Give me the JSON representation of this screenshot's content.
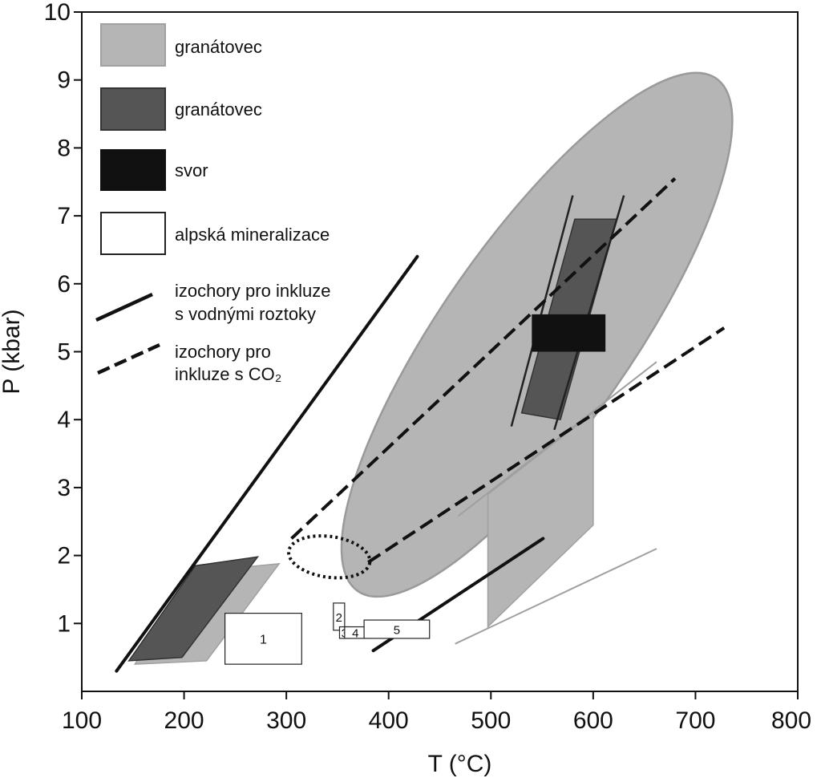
{
  "chart_data": {
    "type": "scatter",
    "xlabel": "T (°C)",
    "ylabel": "P (kbar)",
    "xlim": [
      100,
      800
    ],
    "ylim": [
      0,
      10
    ],
    "xticks": [
      100,
      200,
      300,
      400,
      500,
      600,
      700,
      800
    ],
    "yticks": [
      1,
      2,
      3,
      4,
      5,
      6,
      7,
      8,
      9,
      10
    ],
    "grid": false,
    "legend_position": "top-left",
    "legend": [
      {
        "label": "granátovec",
        "kind": "swatch",
        "color": "#b5b5b5",
        "stroke": "#a0a0a0"
      },
      {
        "label": "granátovec",
        "kind": "swatch",
        "color": "#555555",
        "stroke": "#333333"
      },
      {
        "label": "svor",
        "kind": "swatch",
        "color": "#111111",
        "stroke": "#111111"
      },
      {
        "label": "alpská mineralizace",
        "kind": "swatch",
        "color": "#ffffff",
        "stroke": "#222222"
      },
      {
        "label_lines": [
          "izochory pro inkluze",
          "s vodnými roztoky"
        ],
        "kind": "solid-line"
      },
      {
        "label_lines": [
          "izochory pro",
          "inkluze s CO₂"
        ],
        "kind": "dashed-line"
      }
    ],
    "fields": {
      "light_ellipse": {
        "center": [
          545,
          5.25
        ],
        "rx_units": 225,
        "ry_units": 4.9,
        "rotation_deg": 35,
        "color": "#b5b5b5"
      },
      "light_polygon_left": [
        [
          152,
          0.4
        ],
        [
          222,
          0.45
        ],
        [
          293,
          1.88
        ],
        [
          206,
          1.75
        ]
      ],
      "light_polygon_right": [
        [
          497,
          0.95
        ],
        [
          600,
          2.45
        ],
        [
          600,
          4.1
        ],
        [
          497,
          2.9
        ]
      ],
      "light_lines": [
        {
          "from": [
            465,
            0.7
          ],
          "to": [
            662,
            2.1
          ]
        },
        {
          "from": [
            468,
            2.58
          ],
          "to": [
            662,
            4.85
          ]
        }
      ],
      "dark_polygon_left": [
        [
          146,
          0.45
        ],
        [
          198,
          0.5
        ],
        [
          272,
          1.98
        ],
        [
          211,
          1.85
        ]
      ],
      "dark_polygon_right": [
        [
          530,
          4.1
        ],
        [
          568,
          4.0
        ],
        [
          623,
          6.95
        ],
        [
          582,
          6.95
        ]
      ],
      "dark_bracket_lines": [
        {
          "from": [
            520,
            3.9
          ],
          "to": [
            580,
            7.3
          ]
        },
        {
          "from": [
            562,
            3.85
          ],
          "to": [
            630,
            7.3
          ]
        }
      ],
      "black_rect": {
        "x": [
          540,
          612
        ],
        "y": [
          5.0,
          5.55
        ],
        "color": "#111111"
      }
    },
    "alpine_boxes": [
      {
        "label": "1",
        "x": [
          240,
          315
        ],
        "y": [
          0.4,
          1.15
        ]
      },
      {
        "label": "2",
        "x": [
          346,
          357
        ],
        "y": [
          0.9,
          1.3
        ]
      },
      {
        "label": "3",
        "x": [
          352,
          362
        ],
        "y": [
          0.78,
          0.95
        ]
      },
      {
        "label": "4",
        "x": [
          357,
          378
        ],
        "y": [
          0.78,
          0.95
        ]
      },
      {
        "label": "5",
        "x": [
          376,
          440
        ],
        "y": [
          0.78,
          1.05
        ]
      }
    ],
    "isochores_water": [
      {
        "from": [
          134,
          0.3
        ],
        "to": [
          428,
          6.4
        ]
      },
      {
        "from": [
          385,
          0.6
        ],
        "to": [
          551,
          2.25
        ]
      }
    ],
    "isochores_co2": [
      {
        "from": [
          305,
          2.25
        ],
        "to": [
          680,
          7.55
        ]
      },
      {
        "from": [
          380,
          1.9
        ],
        "to": [
          728,
          5.35
        ]
      }
    ],
    "dotted_ellipse": {
      "center": [
        342,
        1.98
      ],
      "rx_units": 40,
      "ry_units": 0.3,
      "rotation_deg": 8
    }
  }
}
